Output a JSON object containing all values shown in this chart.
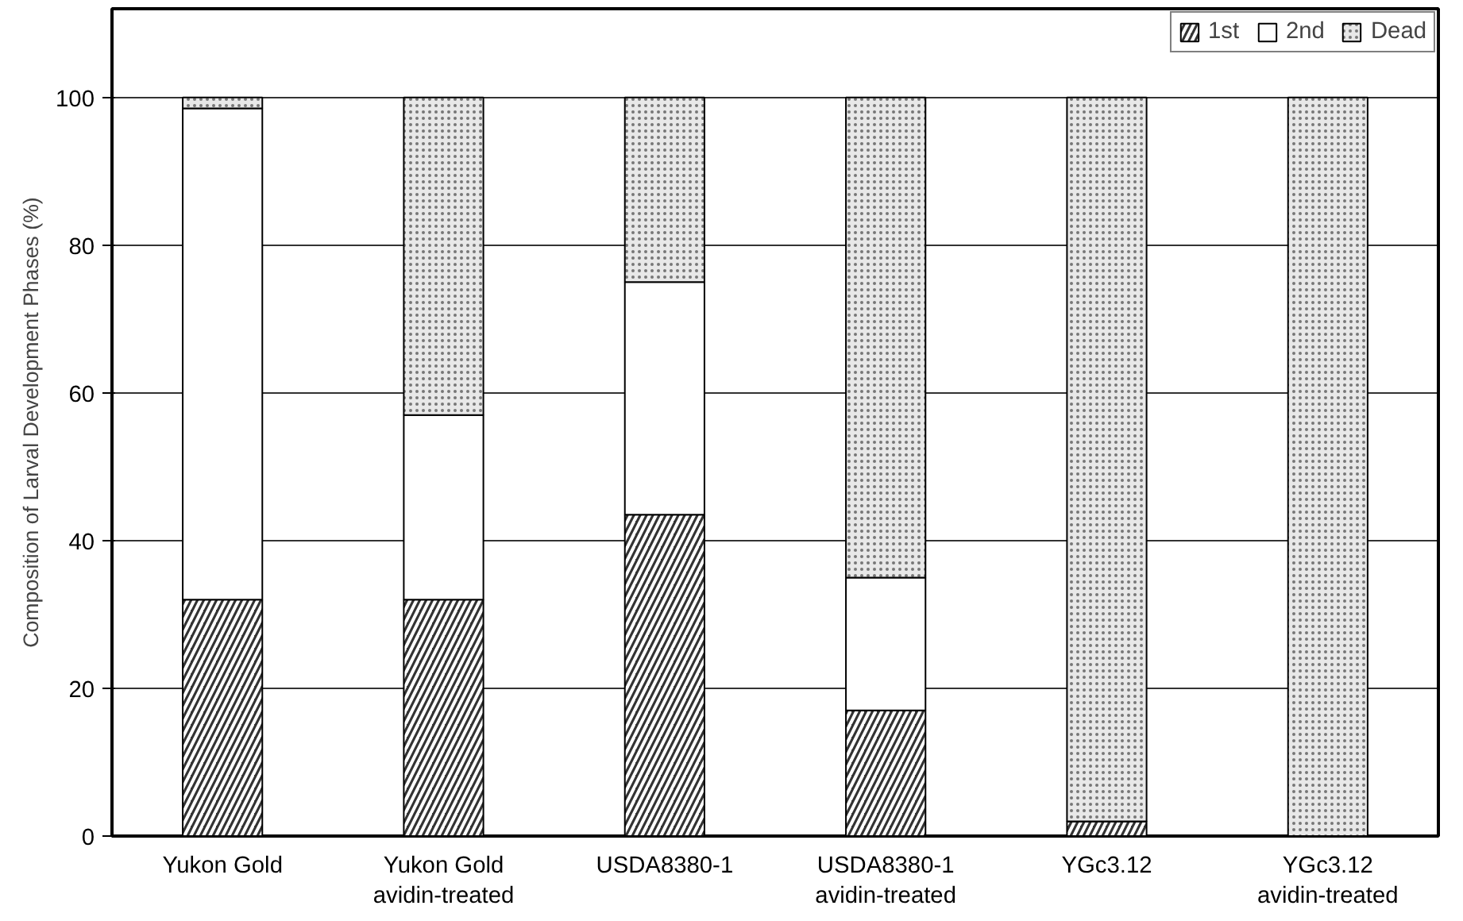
{
  "chart_data": {
    "type": "bar",
    "stacked": true,
    "ylabel": "Composition of Larval Development Phases (%)",
    "categories": [
      "Yukon Gold",
      "Yukon Gold\navidin-treated",
      "USDA8380-1",
      "USDA8380-1\navidin-treated",
      "YGc3.12",
      "YGc3.12\navidin-treated"
    ],
    "series": [
      {
        "name": "1st",
        "color": "#333333",
        "values": [
          32,
          32,
          43.5,
          17,
          2,
          0
        ]
      },
      {
        "name": "2nd",
        "color": "#ffffff",
        "values": [
          66.5,
          25,
          31.5,
          18,
          0,
          0
        ]
      },
      {
        "name": "Dead",
        "color": "#e8e8e8",
        "values": [
          1.5,
          43,
          25,
          65,
          98,
          100
        ]
      }
    ],
    "ylim": [
      0,
      112
    ],
    "yticks": [
      0,
      20,
      40,
      60,
      80,
      100
    ],
    "grid": "y",
    "legend": "top right"
  }
}
